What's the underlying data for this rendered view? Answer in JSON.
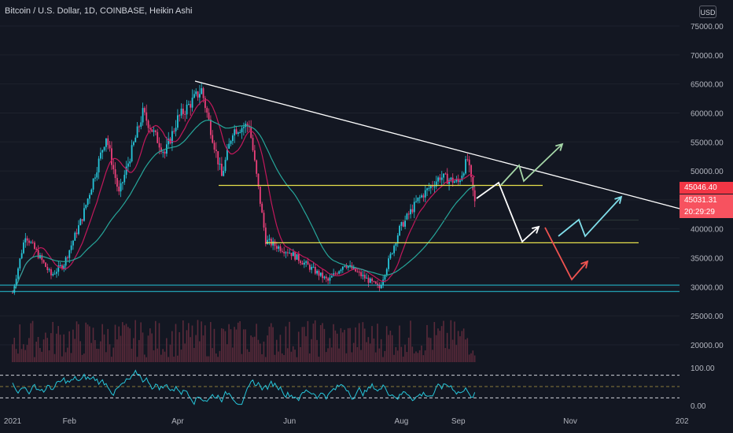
{
  "header": {
    "title": "Bitcoin / U.S. Dollar, 1D, COINBASE, Heikin Ashi",
    "currency": "USD"
  },
  "price_tags": [
    {
      "label": "45046.40",
      "color": "#f23645"
    },
    {
      "label": "45031.31",
      "color": "#f7525f"
    },
    {
      "label": "20:29:29",
      "color": "#f7525f"
    }
  ],
  "chart_data": {
    "type": "candlestick",
    "title": "Bitcoin / U.S. Dollar, 1D, COINBASE, Heikin Ashi",
    "x_tick_labels": [
      "2021",
      "Feb",
      "Apr",
      "Jun",
      "Aug",
      "Sep",
      "Nov",
      "202"
    ],
    "y_tick_labels": [
      "75000.00",
      "70000.00",
      "65000.00",
      "60000.00",
      "55000.00",
      "50000.00",
      "40000.00",
      "35000.00",
      "30000.00",
      "25000.00",
      "20000.00"
    ],
    "ylim": [
      16000,
      77000
    ],
    "price_path": [
      [
        "2021-01-01",
        29000
      ],
      [
        "2021-01-08",
        39000
      ],
      [
        "2021-01-22",
        32000
      ],
      [
        "2021-01-29",
        34000
      ],
      [
        "2021-02-08",
        42000
      ],
      [
        "2021-02-21",
        56000
      ],
      [
        "2021-02-28",
        46000
      ],
      [
        "2021-03-13",
        60000
      ],
      [
        "2021-03-25",
        53000
      ],
      [
        "2021-04-01",
        59000
      ],
      [
        "2021-04-14",
        64000
      ],
      [
        "2021-04-25",
        49000
      ],
      [
        "2021-05-01",
        57000
      ],
      [
        "2021-05-10",
        58000
      ],
      [
        "2021-05-19",
        38000
      ],
      [
        "2021-05-25",
        37000
      ],
      [
        "2021-06-01",
        36000
      ],
      [
        "2021-06-22",
        31000
      ],
      [
        "2021-07-01",
        34000
      ],
      [
        "2021-07-20",
        29800
      ],
      [
        "2021-07-31",
        40000
      ],
      [
        "2021-08-10",
        45000
      ],
      [
        "2021-08-22",
        49000
      ],
      [
        "2021-09-01",
        48000
      ],
      [
        "2021-09-06",
        52000
      ],
      [
        "2021-09-10",
        44500
      ]
    ],
    "indicator": {
      "levels": [
        "100.00",
        "0.00"
      ],
      "bands": [
        80,
        50,
        20
      ]
    }
  },
  "drawings": {
    "trendline_color": "#ffffff",
    "support_color": "#e6e04b",
    "base_line_color": "#26c6da",
    "scenario_up_color": "#a5d6a7",
    "scenario_mid_color": "#80deea",
    "scenario_down_color": "#ef5350",
    "main_path_color": "#ffffff"
  },
  "colors": {
    "background": "#131722",
    "candle_up": "#26c6da",
    "candle_down": "#ec407a",
    "ma_fast": "#c2185b",
    "ma_slow": "#26a69a",
    "volume": "#5a2a3a",
    "rsi_line": "#26c6da"
  }
}
